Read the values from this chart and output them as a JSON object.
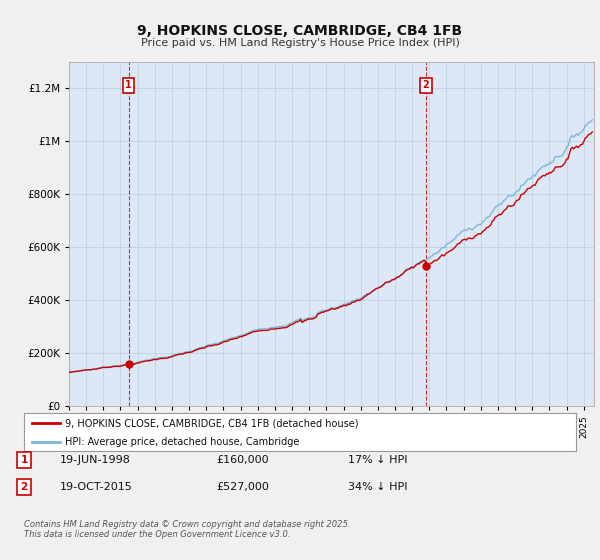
{
  "title": "9, HOPKINS CLOSE, CAMBRIDGE, CB4 1FB",
  "subtitle": "Price paid vs. HM Land Registry's House Price Index (HPI)",
  "ytick_values": [
    0,
    200000,
    400000,
    600000,
    800000,
    1000000,
    1200000
  ],
  "ylim": [
    0,
    1300000
  ],
  "purchase1_date": 1998.47,
  "purchase1_price": 160000,
  "purchase2_date": 2015.8,
  "purchase2_price": 527000,
  "hpi_color": "#7ab8d9",
  "price_color": "#cc0000",
  "dashed_color": "#cc0000",
  "bg_color": "#f0f0f0",
  "plot_bg": "#dce8f5",
  "legend_entry1": "9, HOPKINS CLOSE, CAMBRIDGE, CB4 1FB (detached house)",
  "legend_entry2": "HPI: Average price, detached house, Cambridge",
  "note1_date": "19-JUN-1998",
  "note1_price": "£160,000",
  "note1_hpi": "17% ↓ HPI",
  "note2_date": "19-OCT-2015",
  "note2_price": "£527,000",
  "note2_hpi": "34% ↓ HPI",
  "footer": "Contains HM Land Registry data © Crown copyright and database right 2025.\nThis data is licensed under the Open Government Licence v3.0."
}
